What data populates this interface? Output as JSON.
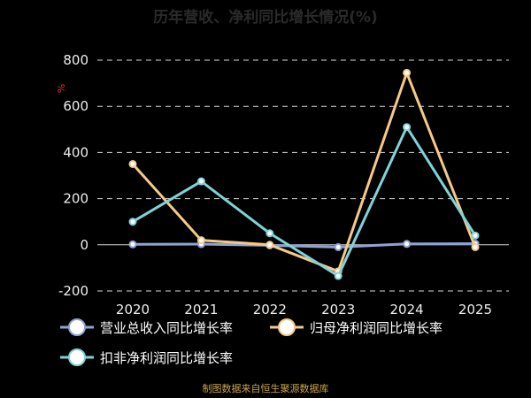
{
  "chart_data": {
    "type": "line",
    "title": "历年营收、净利同比增长情况(%)",
    "ylabel": "%",
    "categories": [
      "2020",
      "2021",
      "2022",
      "2023",
      "2024",
      "2025"
    ],
    "ylim": [
      -200,
      800
    ],
    "yticks": [
      -200,
      0,
      200,
      400,
      600,
      800
    ],
    "grid": true,
    "legend_position": "bottom",
    "series": [
      {
        "name": "营业总收入同比增长率",
        "color": "#8fa3d6",
        "values": [
          2,
          3,
          -2,
          -10,
          4,
          5
        ]
      },
      {
        "name": "归母净利润同比增长率",
        "color": "#f6c987",
        "values": [
          350,
          20,
          0,
          -115,
          745,
          -10
        ]
      },
      {
        "name": "扣非净利润同比增长率",
        "color": "#7fd3d8",
        "values": [
          100,
          275,
          50,
          -135,
          510,
          40
        ]
      }
    ],
    "footer": "制图数据来自恒生聚源数据库"
  }
}
